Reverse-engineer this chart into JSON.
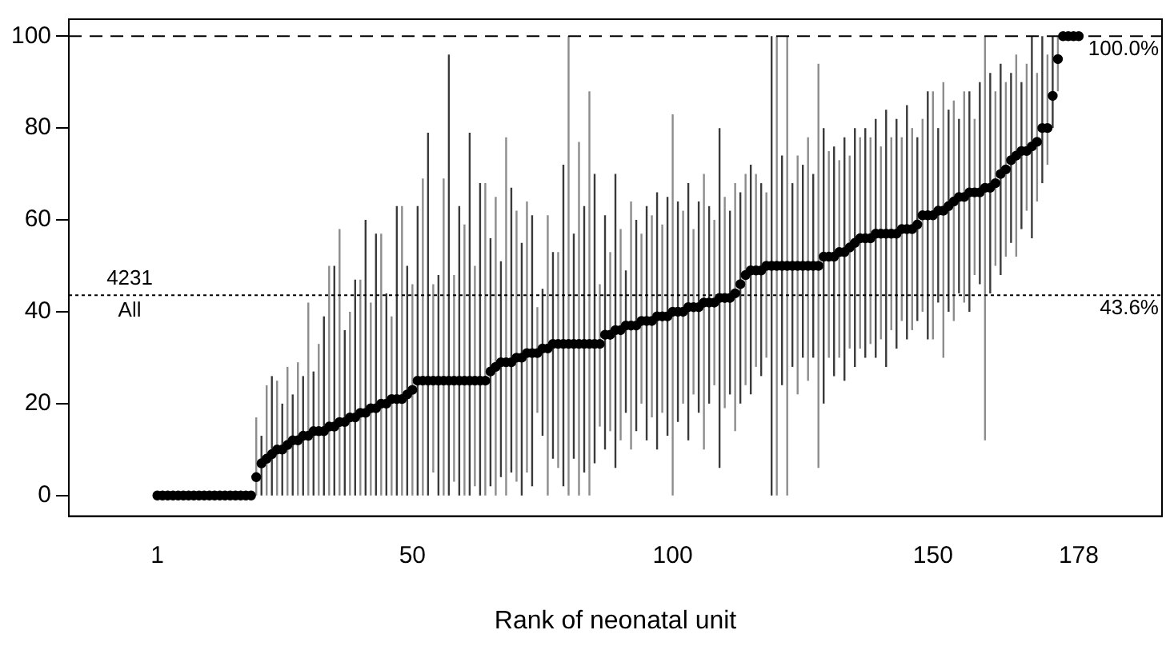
{
  "chart_data": {
    "type": "scatter",
    "xlabel": "Rank of neonatal unit",
    "color": "#000000",
    "marker": "circle",
    "grid": false,
    "legend": false,
    "x": [
      1,
      2,
      3,
      4,
      5,
      6,
      7,
      8,
      9,
      10,
      11,
      12,
      13,
      14,
      15,
      16,
      17,
      18,
      19,
      20,
      21,
      22,
      23,
      24,
      25,
      26,
      27,
      28,
      29,
      30,
      31,
      32,
      33,
      34,
      35,
      36,
      37,
      38,
      39,
      40,
      41,
      42,
      43,
      44,
      45,
      46,
      47,
      48,
      49,
      50,
      51,
      52,
      53,
      54,
      55,
      56,
      57,
      58,
      59,
      60,
      61,
      62,
      63,
      64,
      65,
      66,
      67,
      68,
      69,
      70,
      71,
      72,
      73,
      74,
      75,
      76,
      77,
      78,
      79,
      80,
      81,
      82,
      83,
      84,
      85,
      86,
      87,
      88,
      89,
      90,
      91,
      92,
      93,
      94,
      95,
      96,
      97,
      98,
      99,
      100,
      101,
      102,
      103,
      104,
      105,
      106,
      107,
      108,
      109,
      110,
      111,
      112,
      113,
      114,
      115,
      116,
      117,
      118,
      119,
      120,
      121,
      122,
      123,
      124,
      125,
      126,
      127,
      128,
      129,
      130,
      131,
      132,
      133,
      134,
      135,
      136,
      137,
      138,
      139,
      140,
      141,
      142,
      143,
      144,
      145,
      146,
      147,
      148,
      149,
      150,
      151,
      152,
      153,
      154,
      155,
      156,
      157,
      158,
      159,
      160,
      161,
      162,
      163,
      164,
      165,
      166,
      167,
      168,
      169,
      170,
      171,
      172,
      173,
      174,
      175,
      176,
      177,
      178
    ],
    "values": [
      0,
      0,
      0,
      0,
      0,
      0,
      0,
      0,
      0,
      0,
      0,
      0,
      0,
      0,
      0,
      0,
      0,
      0,
      0,
      4,
      7,
      8,
      9,
      10,
      10,
      11,
      12,
      12,
      13,
      13,
      14,
      14,
      14,
      15,
      15,
      16,
      16,
      17,
      17,
      18,
      18,
      19,
      19,
      20,
      20,
      21,
      21,
      21,
      22,
      23,
      25,
      25,
      25,
      25,
      25,
      25,
      25,
      25,
      25,
      25,
      25,
      25,
      25,
      25,
      27,
      28,
      29,
      29,
      29,
      30,
      30,
      31,
      31,
      31,
      32,
      32,
      33,
      33,
      33,
      33,
      33,
      33,
      33,
      33,
      33,
      33,
      35,
      35,
      36,
      36,
      37,
      37,
      37,
      38,
      38,
      38,
      39,
      39,
      39,
      40,
      40,
      40,
      41,
      41,
      41,
      42,
      42,
      42,
      43,
      43,
      43,
      44,
      46,
      48,
      49,
      49,
      49,
      50,
      50,
      50,
      50,
      50,
      50,
      50,
      50,
      50,
      50,
      50,
      52,
      52,
      52,
      53,
      53,
      54,
      55,
      56,
      56,
      56,
      57,
      57,
      57,
      57,
      57,
      58,
      58,
      58,
      59,
      61,
      61,
      61,
      62,
      62,
      63,
      64,
      65,
      65,
      66,
      66,
      66,
      67,
      67,
      68,
      70,
      71,
      73,
      74,
      75,
      75,
      76,
      77,
      80,
      80,
      87,
      95,
      100,
      100,
      100,
      100
    ],
    "errors": [
      null,
      null,
      null,
      null,
      null,
      null,
      null,
      null,
      null,
      null,
      null,
      null,
      null,
      null,
      null,
      null,
      null,
      null,
      null,
      [
        0,
        17
      ],
      [
        0,
        13
      ],
      [
        0,
        24
      ],
      [
        0,
        26
      ],
      [
        0,
        25
      ],
      [
        0,
        20
      ],
      [
        0,
        28
      ],
      [
        0,
        22
      ],
      [
        0,
        29
      ],
      [
        0,
        26
      ],
      [
        0,
        42
      ],
      [
        0,
        27
      ],
      [
        0,
        33
      ],
      [
        0,
        39
      ],
      [
        0,
        50
      ],
      [
        0,
        50
      ],
      [
        0,
        58
      ],
      [
        0,
        36
      ],
      [
        0,
        40
      ],
      [
        0,
        47
      ],
      [
        0,
        47
      ],
      [
        0,
        60
      ],
      [
        0,
        42
      ],
      [
        0,
        57
      ],
      [
        0,
        57
      ],
      [
        0,
        44
      ],
      [
        0,
        39
      ],
      [
        0,
        63
      ],
      [
        0,
        63
      ],
      [
        0,
        50
      ],
      [
        0,
        46
      ],
      [
        0,
        63
      ],
      [
        0,
        69
      ],
      [
        0,
        79
      ],
      [
        5,
        46
      ],
      [
        0,
        48
      ],
      [
        0,
        69
      ],
      [
        0,
        96
      ],
      [
        3,
        48
      ],
      [
        0,
        63
      ],
      [
        0,
        59
      ],
      [
        0,
        79
      ],
      [
        2,
        50
      ],
      [
        0,
        68
      ],
      [
        0,
        68
      ],
      [
        2,
        56
      ],
      [
        0,
        65
      ],
      [
        4,
        51
      ],
      [
        0,
        78
      ],
      [
        5,
        67
      ],
      [
        3,
        62
      ],
      [
        0,
        55
      ],
      [
        5,
        64
      ],
      [
        2,
        61
      ],
      [
        18,
        41
      ],
      [
        13,
        45
      ],
      [
        0,
        61
      ],
      [
        8,
        53
      ],
      [
        6,
        53
      ],
      [
        2,
        72
      ],
      [
        0,
        100
      ],
      [
        8,
        57
      ],
      [
        0,
        77
      ],
      [
        5,
        63
      ],
      [
        0,
        88
      ],
      [
        7,
        70
      ],
      [
        15,
        46
      ],
      [
        10,
        61
      ],
      [
        14,
        53
      ],
      [
        6,
        70
      ],
      [
        12,
        58
      ],
      [
        18,
        49
      ],
      [
        10,
        64
      ],
      [
        14,
        60
      ],
      [
        20,
        57
      ],
      [
        12,
        63
      ],
      [
        17,
        61
      ],
      [
        10,
        66
      ],
      [
        18,
        59
      ],
      [
        13,
        65
      ],
      [
        0,
        83
      ],
      [
        16,
        64
      ],
      [
        20,
        62
      ],
      [
        12,
        68
      ],
      [
        22,
        58
      ],
      [
        18,
        64
      ],
      [
        10,
        70
      ],
      [
        20,
        63
      ],
      [
        24,
        60
      ],
      [
        6,
        80
      ],
      [
        19,
        65
      ],
      [
        22,
        62
      ],
      [
        14,
        68
      ],
      [
        20,
        66
      ],
      [
        24,
        70
      ],
      [
        22,
        72
      ],
      [
        28,
        70
      ],
      [
        26,
        68
      ],
      [
        30,
        66
      ],
      [
        0,
        100
      ],
      [
        0,
        100
      ],
      [
        24,
        74
      ],
      [
        0,
        100
      ],
      [
        28,
        68
      ],
      [
        22,
        74
      ],
      [
        30,
        72
      ],
      [
        25,
        78
      ],
      [
        30,
        70
      ],
      [
        6,
        94
      ],
      [
        20,
        80
      ],
      [
        30,
        75
      ],
      [
        26,
        76
      ],
      [
        30,
        73
      ],
      [
        25,
        78
      ],
      [
        32,
        74
      ],
      [
        28,
        80
      ],
      [
        32,
        78
      ],
      [
        30,
        80
      ],
      [
        33,
        78
      ],
      [
        30,
        82
      ],
      [
        34,
        76
      ],
      [
        28,
        84
      ],
      [
        36,
        78
      ],
      [
        32,
        82
      ],
      [
        38,
        78
      ],
      [
        34,
        85
      ],
      [
        36,
        80
      ],
      [
        38,
        78
      ],
      [
        40,
        82
      ],
      [
        34,
        88
      ],
      [
        34,
        88
      ],
      [
        42,
        80
      ],
      [
        30,
        90
      ],
      [
        40,
        84
      ],
      [
        38,
        86
      ],
      [
        44,
        82
      ],
      [
        42,
        88
      ],
      [
        40,
        88
      ],
      [
        48,
        82
      ],
      [
        46,
        90
      ],
      [
        12,
        100
      ],
      [
        44,
        92
      ],
      [
        50,
        88
      ],
      [
        48,
        94
      ],
      [
        52,
        90
      ],
      [
        55,
        92
      ],
      [
        52,
        96
      ],
      [
        58,
        90
      ],
      [
        62,
        94
      ],
      [
        56,
        100
      ],
      [
        64,
        92
      ],
      [
        68,
        100
      ],
      [
        72,
        96
      ],
      [
        80,
        100
      ],
      [
        88,
        100
      ],
      null,
      null,
      null,
      null
    ],
    "xlim": [
      -16,
      194
    ],
    "ylim": [
      -4.5,
      103.7
    ],
    "xticks": [
      1,
      50,
      100,
      150,
      178
    ],
    "yticks": [
      0,
      20,
      40,
      60,
      80,
      100
    ],
    "ref_lines": [
      {
        "axis": "y",
        "value": 100,
        "label": "100.0%",
        "line_style": "dashed"
      },
      {
        "axis": "y",
        "value": 43.6,
        "label": "43.6%",
        "line_style": "dotted"
      }
    ],
    "annotations": [
      "4231",
      "All"
    ]
  }
}
